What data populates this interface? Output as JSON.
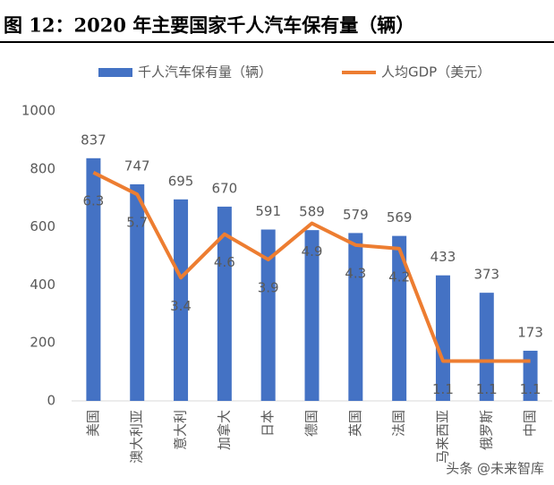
{
  "chart_data": {
    "type": "bar_line",
    "title": "图 12：2020 年主要国家千人汽车保有量（辆）",
    "categories": [
      "美国",
      "澳大利亚",
      "意大利",
      "加拿大",
      "日本",
      "德国",
      "英国",
      "法国",
      "马来西亚",
      "俄罗斯",
      "中国"
    ],
    "series": [
      {
        "name": "千人汽车保有量（辆）",
        "type": "bar",
        "color": "#4472c4",
        "values": [
          837,
          747,
          695,
          670,
          591,
          589,
          579,
          569,
          433,
          373,
          173
        ]
      },
      {
        "name": "人均GDP（美元）",
        "type": "line",
        "axis": "y2",
        "color": "#ed7d31",
        "values": [
          6.3,
          5.7,
          3.4,
          4.6,
          3.9,
          4.9,
          4.3,
          4.2,
          1.1,
          1.1,
          1.1
        ]
      }
    ],
    "ylim": [
      0,
      1000
    ],
    "yticks": [
      0,
      200,
      400,
      600,
      800,
      1000
    ],
    "y2lim": [
      0,
      8
    ],
    "grid": false,
    "legend": "top",
    "watermark": "头条 @未来智库"
  }
}
